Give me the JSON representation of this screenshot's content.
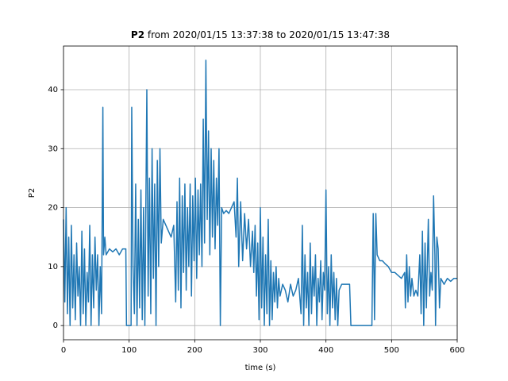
{
  "chart_data": {
    "type": "line",
    "title_prefix": "P2",
    "title": "from 2020/01/15 13:37:38 to 2020/01/15 13:47:38",
    "x_label": "time (s)",
    "y_label": "P2",
    "color": "#1f77b4",
    "grid": true,
    "xlim": [
      0,
      600
    ],
    "xticks": [
      0,
      100,
      200,
      300,
      400,
      500,
      600
    ],
    "ylim": [
      -2.4,
      47.4
    ],
    "yticks": [
      0,
      10,
      20,
      30,
      40
    ],
    "x": [
      0,
      2,
      4,
      6,
      8,
      10,
      12,
      14,
      16,
      18,
      20,
      22,
      24,
      26,
      28,
      30,
      32,
      34,
      36,
      38,
      40,
      42,
      44,
      46,
      48,
      50,
      52,
      54,
      56,
      58,
      60,
      61,
      63,
      65,
      70,
      75,
      80,
      85,
      90,
      95,
      96,
      103,
      104,
      106,
      108,
      110,
      112,
      114,
      116,
      118,
      120,
      122,
      124,
      127,
      129,
      131,
      133,
      135,
      137,
      139,
      141,
      143,
      145,
      147,
      149,
      152,
      156,
      160,
      164,
      168,
      171,
      173,
      175,
      177,
      179,
      181,
      183,
      185,
      187,
      189,
      191,
      193,
      195,
      197,
      199,
      201,
      203,
      205,
      207,
      209,
      211,
      213,
      215,
      217,
      219,
      221,
      223,
      225,
      227,
      229,
      231,
      233,
      235,
      237,
      239,
      241,
      244,
      248,
      252,
      256,
      260,
      263,
      265,
      267,
      270,
      273,
      276,
      279,
      282,
      285,
      288,
      290,
      292,
      294,
      296,
      298,
      300,
      302,
      304,
      306,
      308,
      310,
      312,
      314,
      316,
      318,
      320,
      322,
      324,
      326,
      328,
      330,
      334,
      338,
      342,
      346,
      350,
      354,
      358,
      362,
      364,
      366,
      368,
      370,
      372,
      374,
      376,
      378,
      380,
      382,
      384,
      386,
      388,
      390,
      392,
      394,
      396,
      398,
      400,
      402,
      404,
      406,
      408,
      410,
      412,
      414,
      416,
      418,
      420,
      424,
      430,
      436,
      438,
      445,
      455,
      465,
      470,
      472,
      474,
      476,
      478,
      482,
      486,
      490,
      495,
      500,
      505,
      510,
      515,
      520,
      521,
      523,
      525,
      527,
      529,
      531,
      534,
      537,
      540,
      543,
      545,
      547,
      549,
      551,
      553,
      556,
      558,
      560,
      562,
      564,
      566,
      567,
      569,
      571,
      573,
      575,
      580,
      585,
      590,
      595,
      600
    ],
    "values": [
      18,
      4,
      20,
      2,
      15,
      0,
      17,
      3,
      12,
      1,
      14,
      5,
      10,
      0,
      16,
      2,
      13,
      0,
      9,
      4,
      17,
      0,
      12,
      3,
      15,
      6,
      12,
      0,
      10,
      2,
      37,
      12,
      15,
      12,
      13,
      12.5,
      13,
      12,
      13,
      13,
      0,
      0,
      37,
      10,
      2,
      24,
      0,
      18,
      3,
      23,
      1,
      20,
      0,
      40,
      5,
      25,
      2,
      30,
      8,
      24,
      0,
      28,
      10,
      30,
      14,
      18,
      17,
      16,
      15,
      17,
      4,
      21,
      6,
      25,
      3,
      22,
      9,
      24,
      6,
      20,
      10,
      24,
      5,
      22,
      11,
      25,
      8,
      23,
      12,
      24,
      10,
      35,
      14,
      45,
      18,
      33,
      12,
      30,
      15,
      28,
      13,
      25,
      17,
      30,
      0,
      20,
      19,
      19.5,
      19,
      20,
      21,
      15,
      25,
      10,
      21,
      11,
      19,
      13,
      18,
      10,
      16,
      9,
      17,
      5,
      14,
      1,
      20,
      3,
      15,
      0,
      12,
      2,
      18,
      0,
      11,
      1,
      9,
      4,
      10,
      3,
      8,
      5,
      7,
      6,
      4,
      7,
      5,
      6,
      8,
      2,
      17,
      0,
      12,
      3,
      9,
      0,
      14,
      2,
      10,
      5,
      12,
      0,
      8,
      4,
      11,
      1,
      9,
      6,
      23,
      2,
      10,
      0,
      12,
      3,
      9,
      1,
      8,
      0,
      6,
      7,
      7,
      7,
      0,
      0,
      0,
      0,
      0,
      19,
      1,
      19,
      12,
      11,
      11,
      10.5,
      10,
      9,
      9,
      8.5,
      8,
      9,
      3,
      12,
      4,
      10,
      5,
      8,
      5,
      6,
      5,
      12,
      2,
      16,
      0,
      14,
      3,
      18,
      5,
      9,
      6,
      22,
      12,
      0,
      15,
      13,
      3,
      8,
      7,
      8,
      7.5,
      8,
      8
    ]
  }
}
